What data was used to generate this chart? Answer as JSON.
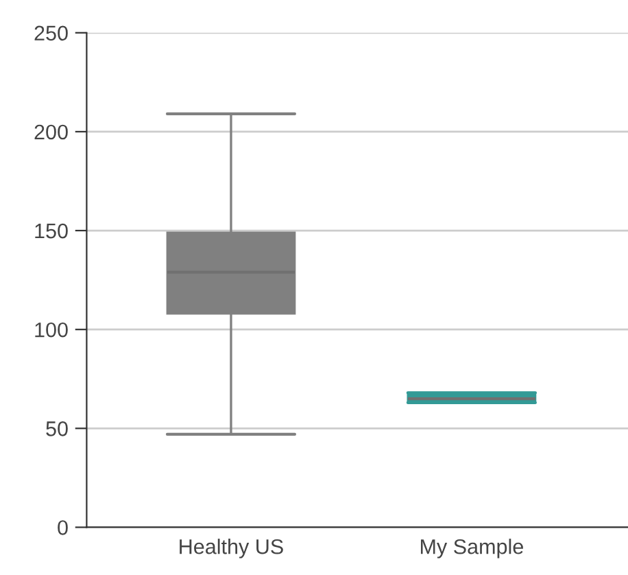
{
  "chart_data": {
    "type": "box",
    "categories": [
      "Healthy US",
      "My Sample"
    ],
    "boxes": [
      {
        "low": 47,
        "q1": 108,
        "median": 129,
        "q3": 149,
        "high": 209
      },
      {
        "low": 63,
        "q1": 63,
        "median": 65,
        "q3": 68,
        "high": 68
      }
    ],
    "colors": [
      "#808080",
      "#339a96"
    ],
    "ylim": [
      0,
      250
    ],
    "yticks": [
      0,
      50,
      100,
      150,
      200,
      250
    ],
    "grid": "y"
  }
}
